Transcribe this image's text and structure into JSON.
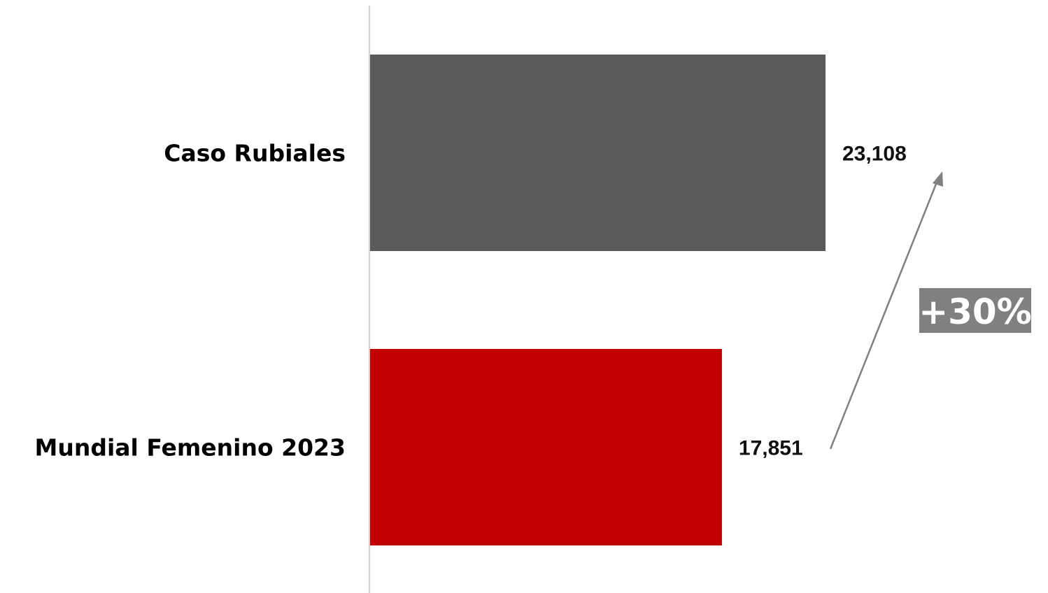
{
  "chart_data": {
    "type": "bar",
    "orientation": "horizontal",
    "categories": [
      "Caso Rubiales",
      "Mundial Femenino 2023"
    ],
    "values": [
      23108,
      17851
    ],
    "value_labels": [
      "23,108",
      "17,851"
    ],
    "colors": [
      "#5a5a5a",
      "#c00000"
    ],
    "xlim": [
      0,
      23108
    ],
    "grid": false,
    "legend": "none",
    "annotation": {
      "text": "+30%",
      "from": "Mundial Femenino 2023",
      "to": "Caso Rubiales",
      "arrow_color": "#808080",
      "badge_color": "#808080"
    }
  }
}
